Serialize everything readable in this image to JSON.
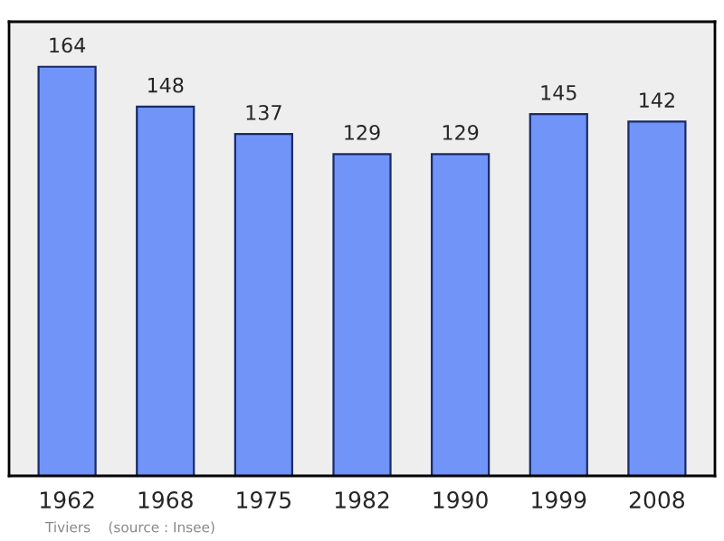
{
  "chart_data": {
    "type": "bar",
    "categories": [
      "1962",
      "1968",
      "1975",
      "1982",
      "1990",
      "1999",
      "2008"
    ],
    "values": [
      164,
      148,
      137,
      129,
      129,
      145,
      142
    ],
    "color": "#7094f8",
    "data_labels": true,
    "grid": false,
    "legend": false,
    "annotations": [
      "Tiviers    (source : Insee)"
    ]
  }
}
